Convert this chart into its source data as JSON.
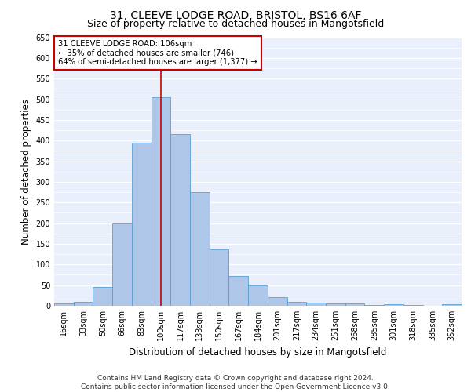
{
  "title1": "31, CLEEVE LODGE ROAD, BRISTOL, BS16 6AF",
  "title2": "Size of property relative to detached houses in Mangotsfield",
  "xlabel": "Distribution of detached houses by size in Mangotsfield",
  "ylabel": "Number of detached properties",
  "categories": [
    "16sqm",
    "33sqm",
    "50sqm",
    "66sqm",
    "83sqm",
    "100sqm",
    "117sqm",
    "133sqm",
    "150sqm",
    "167sqm",
    "184sqm",
    "201sqm",
    "217sqm",
    "234sqm",
    "251sqm",
    "268sqm",
    "285sqm",
    "301sqm",
    "318sqm",
    "335sqm",
    "352sqm"
  ],
  "values": [
    5,
    10,
    45,
    200,
    395,
    505,
    415,
    275,
    137,
    73,
    50,
    20,
    10,
    7,
    5,
    5,
    1,
    3,
    1,
    0,
    3
  ],
  "bar_color": "#aec6e8",
  "bar_edge_color": "#5a9fd4",
  "vline_x": 5,
  "annotation_text": "31 CLEEVE LODGE ROAD: 106sqm\n← 35% of detached houses are smaller (746)\n64% of semi-detached houses are larger (1,377) →",
  "annotation_box_color": "#ffffff",
  "annotation_box_edge_color": "#cc0000",
  "ylim": [
    0,
    650
  ],
  "yticks": [
    0,
    50,
    100,
    150,
    200,
    250,
    300,
    350,
    400,
    450,
    500,
    550,
    600,
    650
  ],
  "background_color": "#eaf0fb",
  "grid_color": "#ffffff",
  "footer1": "Contains HM Land Registry data © Crown copyright and database right 2024.",
  "footer2": "Contains public sector information licensed under the Open Government Licence v3.0.",
  "title_fontsize": 10,
  "subtitle_fontsize": 9,
  "tick_fontsize": 7,
  "label_fontsize": 8.5,
  "footer_fontsize": 6.5
}
